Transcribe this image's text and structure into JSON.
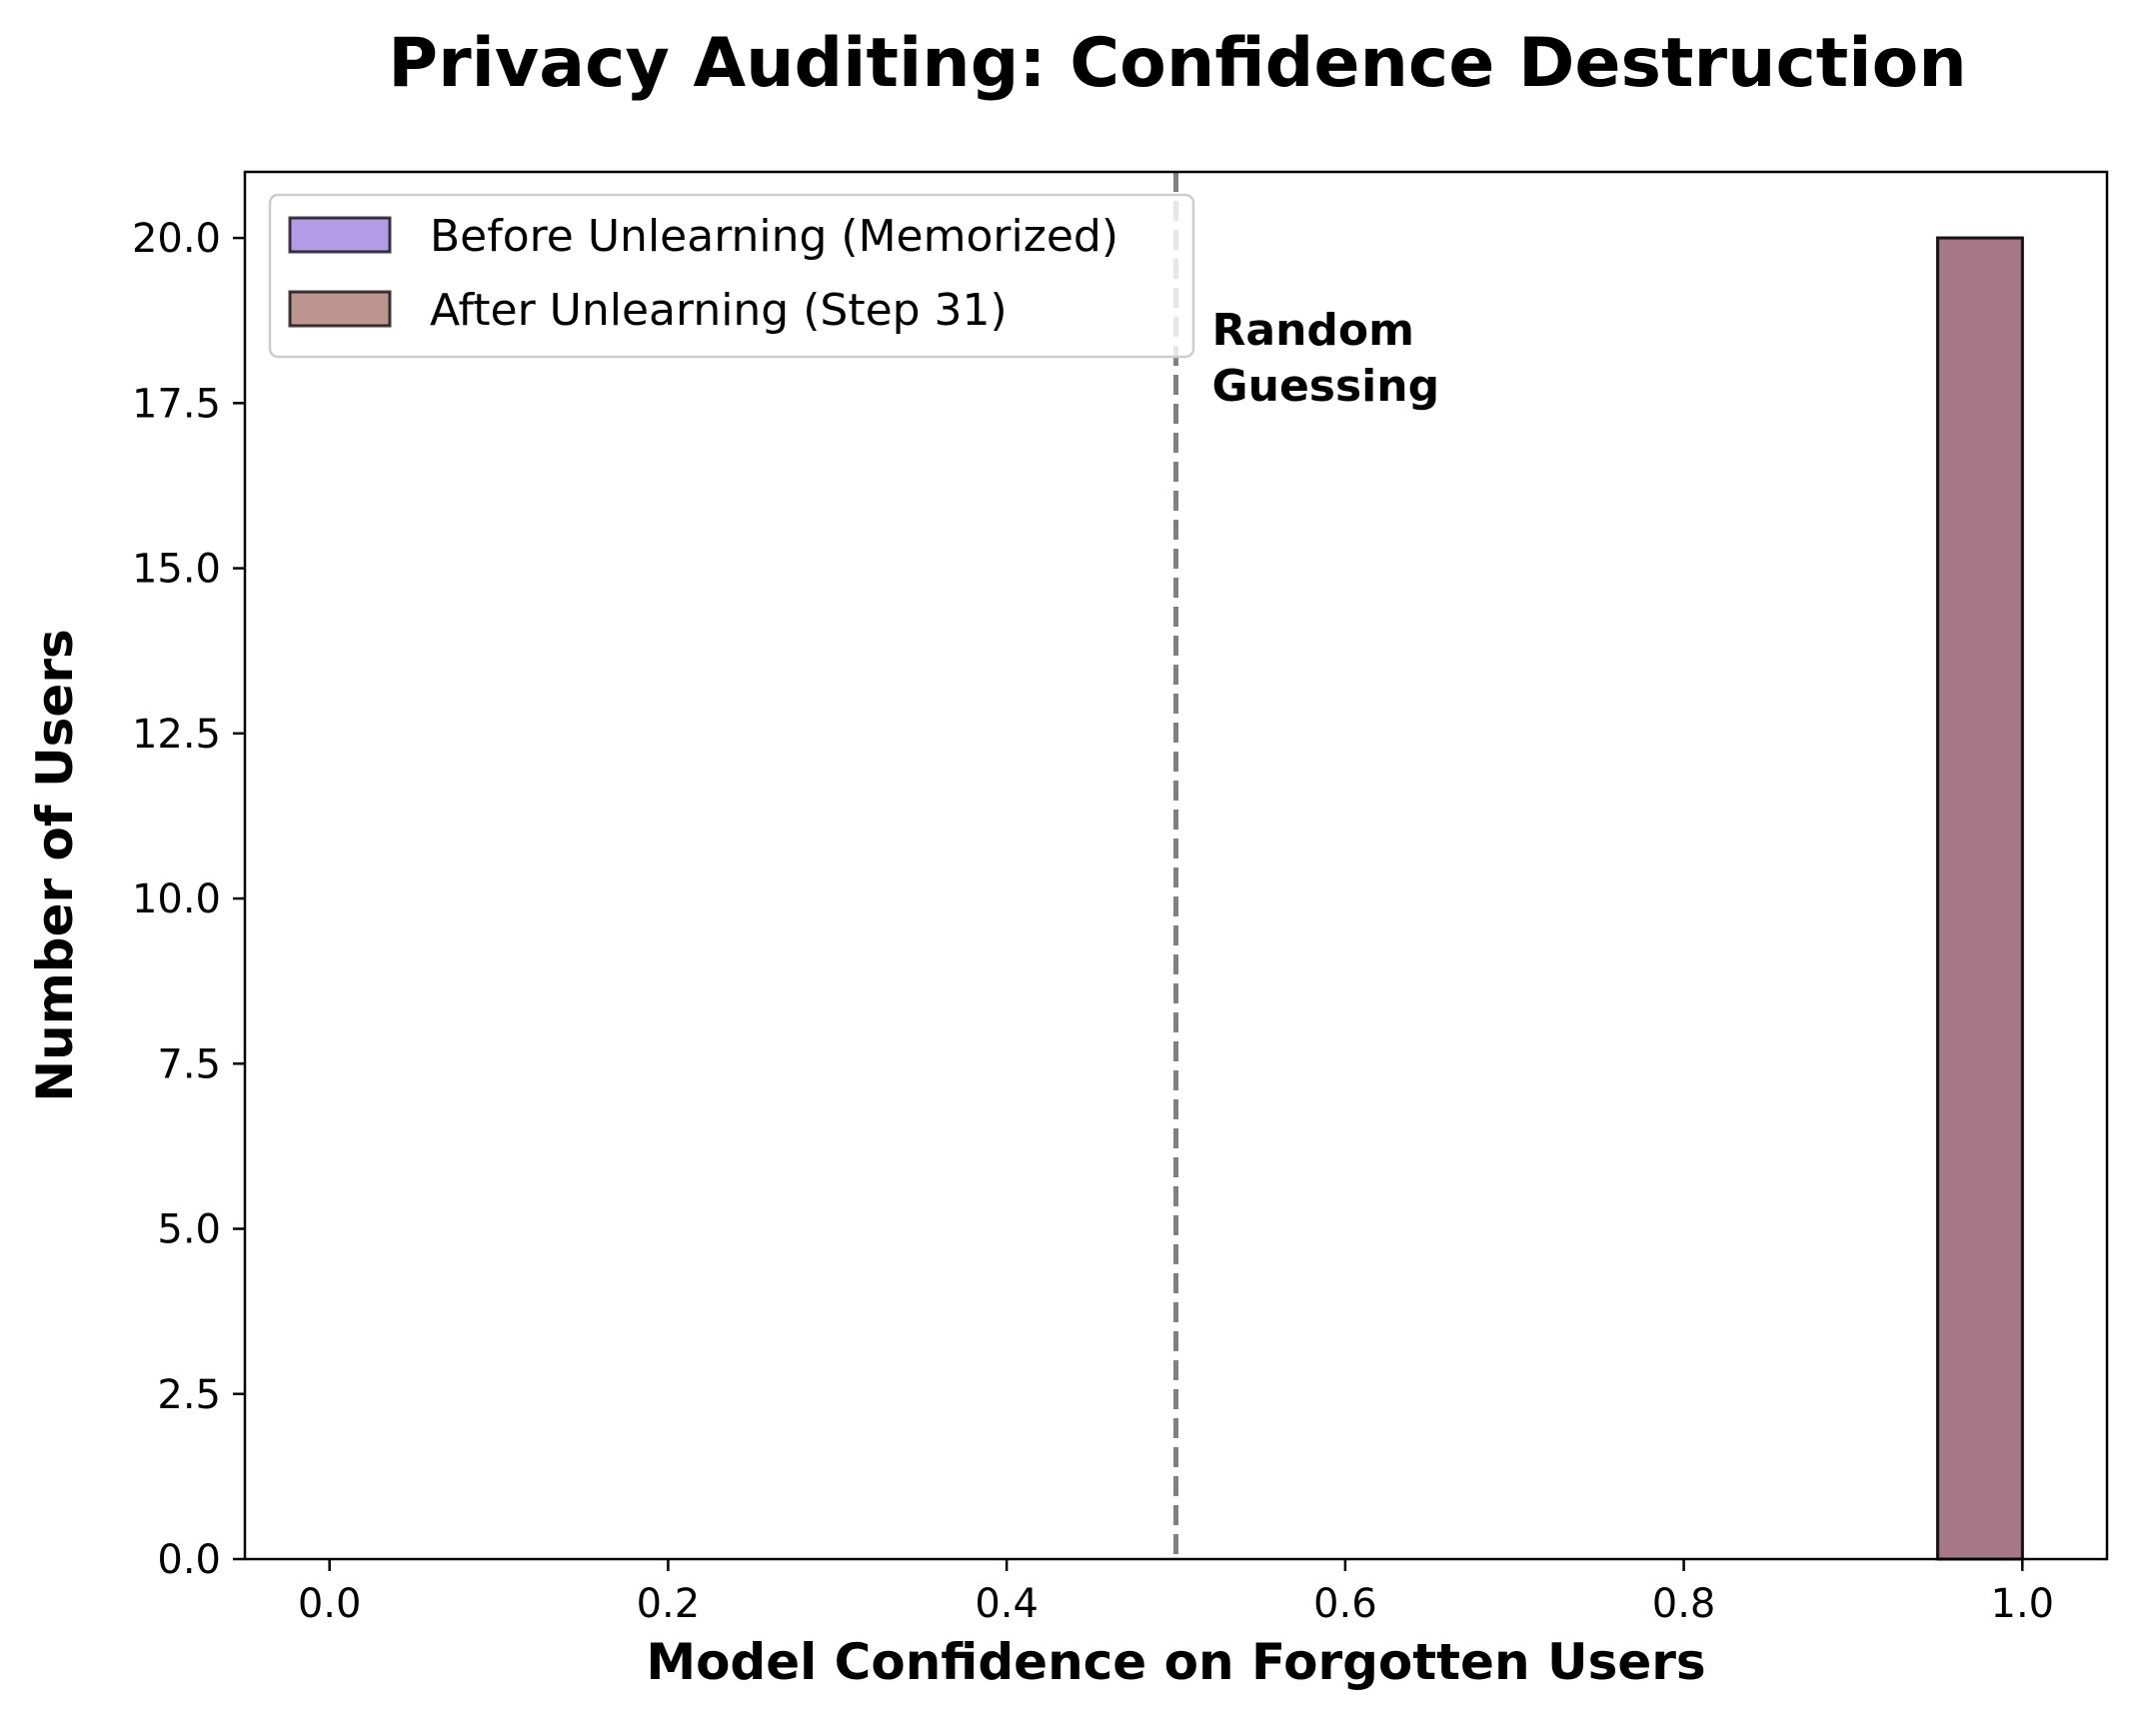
{
  "chart_data": {
    "type": "bar",
    "title": "Privacy Auditing: Confidence Destruction",
    "xlabel": "Model Confidence on Forgotten Users",
    "ylabel": "Number of Users",
    "xlim": [
      -0.05,
      1.05
    ],
    "ylim": [
      0,
      21
    ],
    "xticks": [
      "0.0",
      "0.2",
      "0.4",
      "0.6",
      "0.8",
      "1.0"
    ],
    "yticks": [
      "0.0",
      "2.5",
      "5.0",
      "7.5",
      "10.0",
      "12.5",
      "15.0",
      "17.5",
      "20.0"
    ],
    "series": [
      {
        "name": "Before Unlearning (Memorized)",
        "color": "#9370DB",
        "bins": [
          {
            "x0": 0.95,
            "x1": 1.0,
            "count": 20
          }
        ]
      },
      {
        "name": "After Unlearning (Step 31)",
        "color": "#A0685E",
        "bins": [
          {
            "x0": 0.95,
            "x1": 1.0,
            "count": 20
          }
        ]
      }
    ],
    "reference_line": {
      "x": 0.5,
      "style": "dashed",
      "color": "#808080"
    },
    "annotation": "Random\nGuessing",
    "legend_position": "top-left",
    "grid": false
  }
}
